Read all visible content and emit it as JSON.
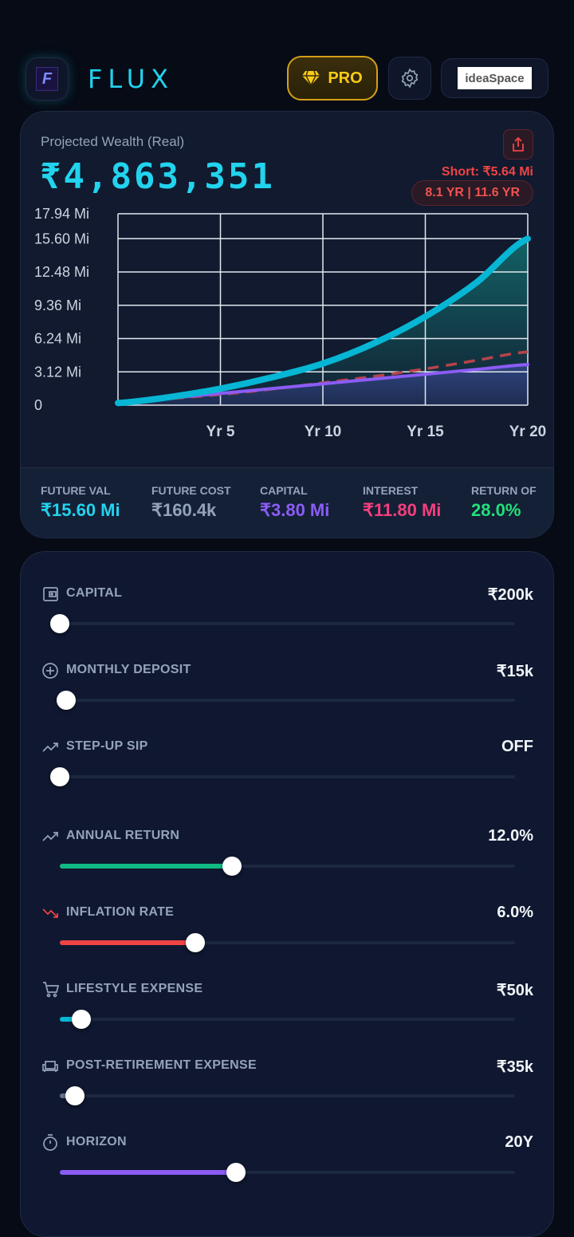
{
  "header": {
    "brand": "FLUX",
    "pro_label": "PRO",
    "partner_logo": "ideaSpace"
  },
  "summary": {
    "title": "Projected Wealth (Real)",
    "value": "₹4,863,351",
    "short": "Short: ₹5.64 Mi",
    "years": "8.1 YR | 11.6 YR"
  },
  "chart_data": {
    "type": "line",
    "x": [
      0,
      2.5,
      5,
      7.5,
      10,
      12.5,
      15,
      17.5,
      20
    ],
    "xticks": [
      "Yr 5",
      "Yr 10",
      "Yr 15",
      "Yr 20"
    ],
    "xtick_values": [
      5,
      10,
      15,
      20
    ],
    "yticks": [
      "17.94 Mi",
      "15.60 Mi",
      "12.48 Mi",
      "9.36 Mi",
      "6.24 Mi",
      "3.12 Mi",
      "0"
    ],
    "ytick_values": [
      17.94,
      15.6,
      12.48,
      9.36,
      6.24,
      3.12,
      0
    ],
    "ylim": [
      0,
      17.94
    ],
    "xlim": [
      0,
      20
    ],
    "series": [
      {
        "name": "Future Value",
        "color": "#06b6d4",
        "values": [
          0.2,
          0.75,
          1.55,
          2.6,
          3.9,
          5.8,
          8.3,
          11.5,
          15.6
        ]
      },
      {
        "name": "Capital",
        "color": "#8b5cf6",
        "values": [
          0.2,
          0.65,
          1.1,
          1.55,
          2.0,
          2.45,
          2.9,
          3.35,
          3.8
        ]
      },
      {
        "name": "Future Cost",
        "color": "#b4444a",
        "dashed": true,
        "values": [
          0.2,
          0.6,
          1.0,
          1.5,
          2.1,
          2.7,
          3.4,
          4.2,
          5.0
        ]
      }
    ]
  },
  "stats": [
    {
      "label": "FUTURE VAL",
      "value": "₹15.60 Mi",
      "color": "#22d3ee"
    },
    {
      "label": "FUTURE COST",
      "value": "₹160.4k",
      "color": "#94a3b8"
    },
    {
      "label": "CAPITAL",
      "value": "₹3.80 Mi",
      "color": "#8b5cf6"
    },
    {
      "label": "INTEREST",
      "value": "₹11.80 Mi",
      "color": "#f43f7e"
    },
    {
      "label": "RETURN OF",
      "value": "28.0%",
      "color": "#22e07a"
    }
  ],
  "sliders": [
    {
      "label": "CAPITAL",
      "value": "₹200k",
      "icon": "wallet-icon",
      "fraction": 0,
      "color": ""
    },
    {
      "label": "MONTHLY DEPOSIT",
      "value": "₹15k",
      "icon": "plus-circle-icon",
      "fraction": 0.014,
      "color": ""
    },
    {
      "label": "STEP-UP SIP",
      "value": "OFF",
      "icon": "trend-up-icon",
      "fraction": 0,
      "color": ""
    },
    {
      "label": "ANNUAL RETURN",
      "value": "12.0%",
      "icon": "trend-up-icon",
      "fraction": 0.378,
      "color": "#10b981"
    },
    {
      "label": "INFLATION RATE",
      "value": "6.0%",
      "icon": "trend-down-icon",
      "fraction": 0.298,
      "color": "#ef4444"
    },
    {
      "label": "LIFESTYLE EXPENSE",
      "value": "₹50k",
      "icon": "cart-icon",
      "fraction": 0.047,
      "color": "#06b6d4"
    },
    {
      "label": "POST-RETIREMENT EXPENSE",
      "value": "₹35k",
      "icon": "sofa-icon",
      "fraction": 0.033,
      "color": "#64748b"
    },
    {
      "label": "HORIZON",
      "value": "20Y",
      "icon": "timer-icon",
      "fraction": 0.387,
      "color": "#8b5cf6"
    }
  ]
}
